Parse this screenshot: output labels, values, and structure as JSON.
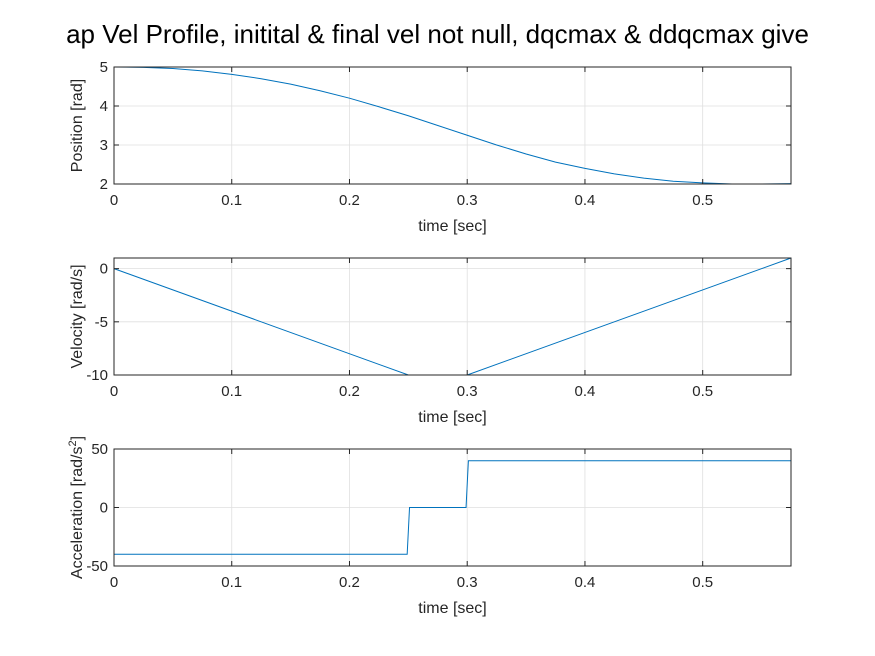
{
  "figure": {
    "title": "ap Vel Profile, initital & final vel not null, dqcmax & ddqcmax give"
  },
  "colors": {
    "line": "#0072BD",
    "grid": "#dfdfdf",
    "axes": "#262626",
    "background": "#ffffff"
  },
  "chart_data": [
    {
      "type": "line",
      "xlabel": "time [sec]",
      "ylabel": "Position [rad]",
      "xlim": [
        0,
        0.575
      ],
      "ylim": [
        2,
        5
      ],
      "xticks": [
        0,
        0.1,
        0.2,
        0.3,
        0.4,
        0.5
      ],
      "xtick_labels": [
        "0",
        "0.1",
        "0.2",
        "0.3",
        "0.4",
        "0.5"
      ],
      "yticks": [
        2,
        3,
        4,
        5
      ],
      "ytick_labels": [
        "2",
        "3",
        "4",
        "5"
      ],
      "grid": true,
      "series": [
        {
          "x": [
            0,
            0.025,
            0.05,
            0.075,
            0.1,
            0.125,
            0.15,
            0.175,
            0.2,
            0.225,
            0.25,
            0.275,
            0.3,
            0.325,
            0.35,
            0.375,
            0.4,
            0.425,
            0.45,
            0.475,
            0.5,
            0.525,
            0.55,
            0.575
          ],
          "y": [
            5.0,
            4.99,
            4.96,
            4.9,
            4.81,
            4.7,
            4.56,
            4.39,
            4.2,
            3.98,
            3.75,
            3.5,
            3.25,
            3.0,
            2.77,
            2.56,
            2.4,
            2.26,
            2.15,
            2.07,
            2.03,
            2.0,
            2.0,
            2.01
          ]
        }
      ]
    },
    {
      "type": "line",
      "xlabel": "time [sec]",
      "ylabel": "Velocity [rad/s]",
      "xlim": [
        0,
        0.575
      ],
      "ylim": [
        -10,
        1
      ],
      "xticks": [
        0,
        0.1,
        0.2,
        0.3,
        0.4,
        0.5
      ],
      "xtick_labels": [
        "0",
        "0.1",
        "0.2",
        "0.3",
        "0.4",
        "0.5"
      ],
      "yticks": [
        -10,
        -5,
        0
      ],
      "ytick_labels": [
        "-10",
        "-5",
        "0"
      ],
      "grid": true,
      "series": [
        {
          "x": [
            0,
            0.25,
            0.3,
            0.575
          ],
          "y": [
            0,
            -10,
            -10,
            1
          ]
        }
      ]
    },
    {
      "type": "line",
      "xlabel": "time [sec]",
      "ylabel": "Acceleration [rad/s",
      "ylabel_superscript": "2",
      "ylabel_suffix": "]",
      "xlim": [
        0,
        0.575
      ],
      "ylim": [
        -50,
        50
      ],
      "xticks": [
        0,
        0.1,
        0.2,
        0.3,
        0.4,
        0.5
      ],
      "xtick_labels": [
        "0",
        "0.1",
        "0.2",
        "0.3",
        "0.4",
        "0.5"
      ],
      "yticks": [
        -50,
        0,
        50
      ],
      "ytick_labels": [
        "-50",
        "0",
        "50"
      ],
      "grid": true,
      "series": [
        {
          "x": [
            0,
            0.249,
            0.251,
            0.299,
            0.301,
            0.575
          ],
          "y": [
            -40,
            -40,
            0,
            0,
            40,
            40
          ]
        }
      ]
    }
  ]
}
